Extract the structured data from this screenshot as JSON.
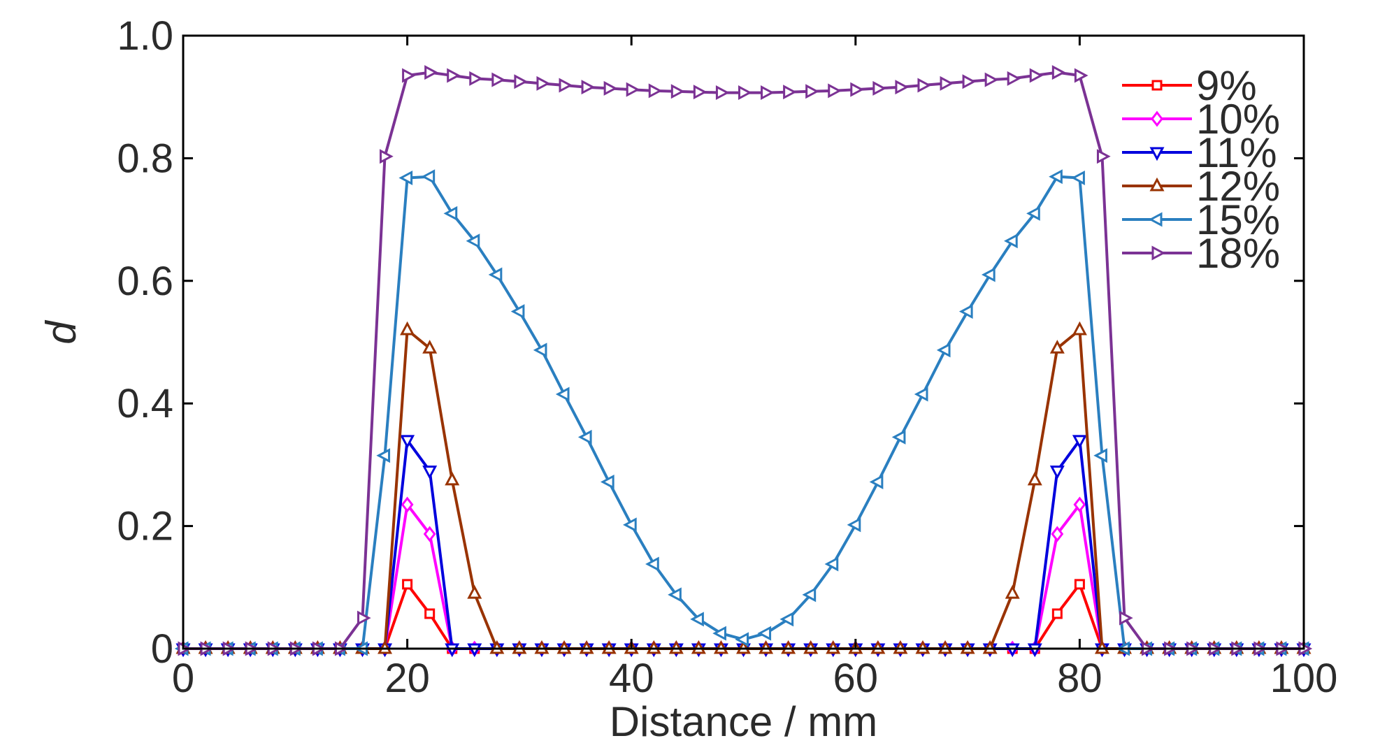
{
  "chart_data": {
    "type": "line",
    "xlabel": "Distance / mm",
    "ylabel": "d",
    "xlim": [
      0,
      100
    ],
    "ylim": [
      0,
      1.0
    ],
    "xticks": [
      0,
      20,
      40,
      60,
      80,
      100
    ],
    "xtick_labels": [
      "0",
      "20",
      "40",
      "60",
      "80",
      "100"
    ],
    "yticks": [
      0,
      0.2,
      0.4,
      0.6,
      0.8,
      1.0
    ],
    "ytick_labels": [
      "0",
      "0.2",
      "0.4",
      "0.6",
      "0.8",
      "1.0"
    ],
    "grid": false,
    "legend_position": "top-right",
    "x": [
      0,
      2,
      4,
      6,
      8,
      10,
      12,
      14,
      16,
      18,
      20,
      22,
      24,
      26,
      28,
      30,
      32,
      34,
      36,
      38,
      40,
      42,
      44,
      46,
      48,
      50,
      52,
      54,
      56,
      58,
      60,
      62,
      64,
      66,
      68,
      70,
      72,
      74,
      76,
      78,
      80,
      82,
      84,
      86,
      88,
      90,
      92,
      94,
      96,
      98,
      100
    ],
    "series": [
      {
        "name": "9%",
        "color": "#ff0000",
        "marker": "square",
        "values": [
          0,
          0,
          0,
          0,
          0,
          0,
          0,
          0,
          0,
          0,
          0.105,
          0.057,
          0,
          0,
          0,
          0,
          0,
          0,
          0,
          0,
          0,
          0,
          0,
          0,
          0,
          0,
          0,
          0,
          0,
          0,
          0,
          0,
          0,
          0,
          0,
          0,
          0,
          0,
          0,
          0.057,
          0.105,
          0,
          0,
          0,
          0,
          0,
          0,
          0,
          0,
          0,
          0
        ]
      },
      {
        "name": "10%",
        "color": "#ff00ff",
        "marker": "diamond",
        "values": [
          0,
          0,
          0,
          0,
          0,
          0,
          0,
          0,
          0,
          0,
          0.235,
          0.187,
          0,
          0,
          0,
          0,
          0,
          0,
          0,
          0,
          0,
          0,
          0,
          0,
          0,
          0,
          0,
          0,
          0,
          0,
          0,
          0,
          0,
          0,
          0,
          0,
          0,
          0,
          0,
          0.187,
          0.235,
          0,
          0,
          0,
          0,
          0,
          0,
          0,
          0,
          0,
          0
        ]
      },
      {
        "name": "11%",
        "color": "#0000dd",
        "marker": "triangle-down",
        "values": [
          0,
          0,
          0,
          0,
          0,
          0,
          0,
          0,
          0,
          0,
          0.34,
          0.29,
          0,
          0,
          0,
          0,
          0,
          0,
          0,
          0,
          0,
          0,
          0,
          0,
          0,
          0,
          0,
          0,
          0,
          0,
          0,
          0,
          0,
          0,
          0,
          0,
          0,
          0,
          0,
          0.29,
          0.34,
          0,
          0,
          0,
          0,
          0,
          0,
          0,
          0,
          0,
          0
        ]
      },
      {
        "name": "12%",
        "color": "#993300",
        "marker": "triangle-up",
        "values": [
          0,
          0,
          0,
          0,
          0,
          0,
          0,
          0,
          0,
          0,
          0.52,
          0.49,
          0.275,
          0.09,
          0,
          0,
          0,
          0,
          0,
          0,
          0,
          0,
          0,
          0,
          0,
          0,
          0,
          0,
          0,
          0,
          0,
          0,
          0,
          0,
          0,
          0,
          0,
          0.09,
          0.275,
          0.49,
          0.52,
          0,
          0,
          0,
          0,
          0,
          0,
          0,
          0,
          0,
          0
        ]
      },
      {
        "name": "15%",
        "color": "#2a7fc0",
        "marker": "triangle-left",
        "values": [
          0,
          0,
          0,
          0,
          0,
          0,
          0,
          0,
          0,
          0.315,
          0.768,
          0.77,
          0.71,
          0.665,
          0.61,
          0.55,
          0.487,
          0.415,
          0.345,
          0.272,
          0.202,
          0.138,
          0.088,
          0.048,
          0.025,
          0.015,
          0.025,
          0.048,
          0.088,
          0.138,
          0.202,
          0.272,
          0.345,
          0.415,
          0.487,
          0.55,
          0.61,
          0.665,
          0.71,
          0.77,
          0.768,
          0.315,
          0,
          0,
          0,
          0,
          0,
          0,
          0,
          0,
          0
        ]
      },
      {
        "name": "18%",
        "color": "#7b3294",
        "marker": "triangle-right",
        "values": [
          0,
          0,
          0,
          0,
          0,
          0,
          0,
          0,
          0.05,
          0.803,
          0.935,
          0.94,
          0.935,
          0.93,
          0.928,
          0.925,
          0.922,
          0.919,
          0.916,
          0.914,
          0.912,
          0.91,
          0.909,
          0.908,
          0.907,
          0.907,
          0.907,
          0.908,
          0.909,
          0.91,
          0.912,
          0.914,
          0.916,
          0.919,
          0.922,
          0.925,
          0.928,
          0.93,
          0.935,
          0.94,
          0.935,
          0.803,
          0.05,
          0,
          0,
          0,
          0,
          0,
          0,
          0,
          0
        ]
      }
    ]
  }
}
